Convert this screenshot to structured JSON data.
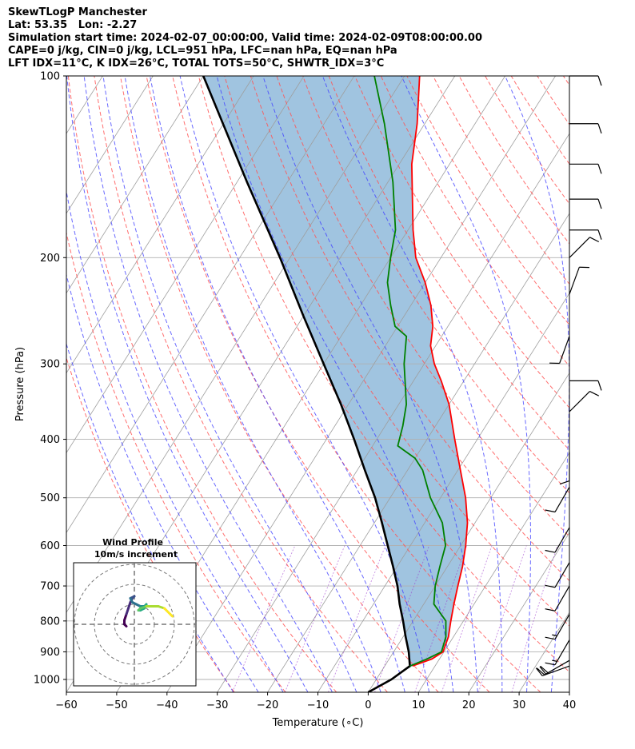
{
  "header": {
    "line1": "SkewTLogP Manchester",
    "line2": "Lat: 53.35   Lon: -2.27",
    "line3": "Simulation start time: 2024-02-07_00:00:00, Valid time: 2024-02-09T08:00:00.00",
    "line4": "CAPE=0 j/kg, CIN=0 j/kg, LCL=951 hPa, LFC=nan hPa, EQ=nan hPa",
    "line5": "LFT IDX=11°C, K IDX=26°C, TOTAL TOTS=50°C, SHWTR_IDX=3°C"
  },
  "chart_data": {
    "type": "skewt",
    "title": "SkewTLogP Manchester",
    "xlabel": "Temperature (∘C)",
    "ylabel": "Pressure (hPa)",
    "xlim": [
      -60,
      40
    ],
    "ylim": [
      1050,
      100
    ],
    "xticks": [
      -60,
      -50,
      -40,
      -30,
      -20,
      -10,
      0,
      10,
      20,
      30,
      40
    ],
    "yticks": [
      100,
      200,
      300,
      400,
      500,
      600,
      700,
      800,
      900,
      1000
    ],
    "colors": {
      "temperature": "#ff0000",
      "dewpoint": "#008000",
      "parcel": "#000000",
      "cape_fill": "#a0c4e0",
      "dry_adiabats": "#ff5555",
      "moist_adiabats": "#4444ff",
      "mixing_ratio": "#9933cc",
      "isotherms": "#9e9e9e",
      "grid": "#b0b0b0"
    },
    "temperature": [
      {
        "p": 950,
        "t": 5.5
      },
      {
        "p": 925,
        "t": 8.5
      },
      {
        "p": 900,
        "t": 9.8
      },
      {
        "p": 850,
        "t": 9.0
      },
      {
        "p": 800,
        "t": 7.5
      },
      {
        "p": 750,
        "t": 6.0
      },
      {
        "p": 700,
        "t": 4.5
      },
      {
        "p": 650,
        "t": 3.0
      },
      {
        "p": 600,
        "t": 1.0
      },
      {
        "p": 550,
        "t": -1.5
      },
      {
        "p": 500,
        "t": -5.0
      },
      {
        "p": 450,
        "t": -9.5
      },
      {
        "p": 400,
        "t": -14.5
      },
      {
        "p": 350,
        "t": -20.0
      },
      {
        "p": 320,
        "t": -24.5
      },
      {
        "p": 300,
        "t": -28.0
      },
      {
        "p": 280,
        "t": -31.0
      },
      {
        "p": 260,
        "t": -33.0
      },
      {
        "p": 240,
        "t": -36.0
      },
      {
        "p": 220,
        "t": -40.0
      },
      {
        "p": 200,
        "t": -45.0
      },
      {
        "p": 180,
        "t": -49.0
      },
      {
        "p": 160,
        "t": -53.0
      },
      {
        "p": 140,
        "t": -57.5
      },
      {
        "p": 120,
        "t": -61.5
      },
      {
        "p": 100,
        "t": -67.0
      }
    ],
    "dewpoint": [
      {
        "p": 950,
        "t": 5.0
      },
      {
        "p": 925,
        "t": 7.5
      },
      {
        "p": 900,
        "t": 9.5
      },
      {
        "p": 850,
        "t": 8.5
      },
      {
        "p": 800,
        "t": 6.5
      },
      {
        "p": 750,
        "t": 2.0
      },
      {
        "p": 700,
        "t": 0.0
      },
      {
        "p": 650,
        "t": -1.5
      },
      {
        "p": 600,
        "t": -3.0
      },
      {
        "p": 550,
        "t": -6.5
      },
      {
        "p": 500,
        "t": -12.0
      },
      {
        "p": 450,
        "t": -17.0
      },
      {
        "p": 430,
        "t": -20.0
      },
      {
        "p": 410,
        "t": -25.0
      },
      {
        "p": 380,
        "t": -26.5
      },
      {
        "p": 350,
        "t": -28.5
      },
      {
        "p": 300,
        "t": -34.0
      },
      {
        "p": 270,
        "t": -37.0
      },
      {
        "p": 260,
        "t": -40.5
      },
      {
        "p": 240,
        "t": -44.0
      },
      {
        "p": 220,
        "t": -47.5
      },
      {
        "p": 200,
        "t": -50.0
      },
      {
        "p": 180,
        "t": -52.5
      },
      {
        "p": 150,
        "t": -59.0
      },
      {
        "p": 120,
        "t": -68.0
      },
      {
        "p": 100,
        "t": -76.0
      }
    ],
    "parcel": [
      {
        "p": 1050,
        "t": 0.0
      },
      {
        "p": 1000,
        "t": 3.0
      },
      {
        "p": 950,
        "t": 5.0
      },
      {
        "p": 900,
        "t": 3.0
      },
      {
        "p": 850,
        "t": 0.5
      },
      {
        "p": 800,
        "t": -2.0
      },
      {
        "p": 750,
        "t": -4.8
      },
      {
        "p": 700,
        "t": -7.5
      },
      {
        "p": 650,
        "t": -10.8
      },
      {
        "p": 600,
        "t": -14.5
      },
      {
        "p": 550,
        "t": -18.5
      },
      {
        "p": 500,
        "t": -23.0
      },
      {
        "p": 450,
        "t": -28.5
      },
      {
        "p": 400,
        "t": -34.5
      },
      {
        "p": 350,
        "t": -41.5
      },
      {
        "p": 300,
        "t": -50.0
      },
      {
        "p": 250,
        "t": -60.0
      },
      {
        "p": 200,
        "t": -72.0
      },
      {
        "p": 150,
        "t": -88.0
      },
      {
        "p": 100,
        "t": -110.0
      }
    ],
    "wind_barbs": [
      {
        "p": 100,
        "speed_kt": 10,
        "dir": 270
      },
      {
        "p": 120,
        "speed_kt": 10,
        "dir": 270
      },
      {
        "p": 140,
        "speed_kt": 10,
        "dir": 270
      },
      {
        "p": 160,
        "speed_kt": 10,
        "dir": 270
      },
      {
        "p": 180,
        "speed_kt": 10,
        "dir": 270
      },
      {
        "p": 200,
        "speed_kt": 10,
        "dir": 315
      },
      {
        "p": 230,
        "speed_kt": 10,
        "dir": 340
      },
      {
        "p": 270,
        "speed_kt": 10,
        "dir": 160
      },
      {
        "p": 320,
        "speed_kt": 10,
        "dir": 270
      },
      {
        "p": 360,
        "speed_kt": 10,
        "dir": 315
      },
      {
        "p": 420,
        "speed_kt": 10,
        "dir": 180
      },
      {
        "p": 480,
        "speed_kt": 10,
        "dir": 150
      },
      {
        "p": 560,
        "speed_kt": 10,
        "dir": 150
      },
      {
        "p": 640,
        "speed_kt": 10,
        "dir": 150
      },
      {
        "p": 700,
        "speed_kt": 10,
        "dir": 150
      },
      {
        "p": 780,
        "speed_kt": 15,
        "dir": 150
      },
      {
        "p": 860,
        "speed_kt": 15,
        "dir": 150
      },
      {
        "p": 930,
        "speed_kt": 20,
        "dir": 120
      },
      {
        "p": 950,
        "speed_kt": 20,
        "dir": 110
      }
    ],
    "hodograph": {
      "title": "Wind Profile",
      "subtitle": "10m/s increment",
      "rings_ms": [
        10,
        20,
        30
      ],
      "points": [
        {
          "u": -4,
          "v": -1
        },
        {
          "u": -5,
          "v": 0
        },
        {
          "u": -5,
          "v": 2
        },
        {
          "u": -4,
          "v": 5
        },
        {
          "u": -3,
          "v": 8
        },
        {
          "u": -2,
          "v": 11
        },
        {
          "u": -1,
          "v": 13
        },
        {
          "u": 0,
          "v": 14
        },
        {
          "u": -2,
          "v": 13
        },
        {
          "u": -1,
          "v": 11
        },
        {
          "u": 1,
          "v": 10
        },
        {
          "u": 3,
          "v": 9
        },
        {
          "u": 5,
          "v": 9
        },
        {
          "u": 6,
          "v": 10
        },
        {
          "u": 5,
          "v": 8
        },
        {
          "u": 3,
          "v": 7
        },
        {
          "u": 2,
          "v": 7
        },
        {
          "u": 3,
          "v": 8
        },
        {
          "u": 6,
          "v": 9
        },
        {
          "u": 9,
          "v": 9
        },
        {
          "u": 12,
          "v": 9
        },
        {
          "u": 15,
          "v": 8
        },
        {
          "u": 18,
          "v": 5
        },
        {
          "u": 19,
          "v": 4
        }
      ]
    }
  }
}
